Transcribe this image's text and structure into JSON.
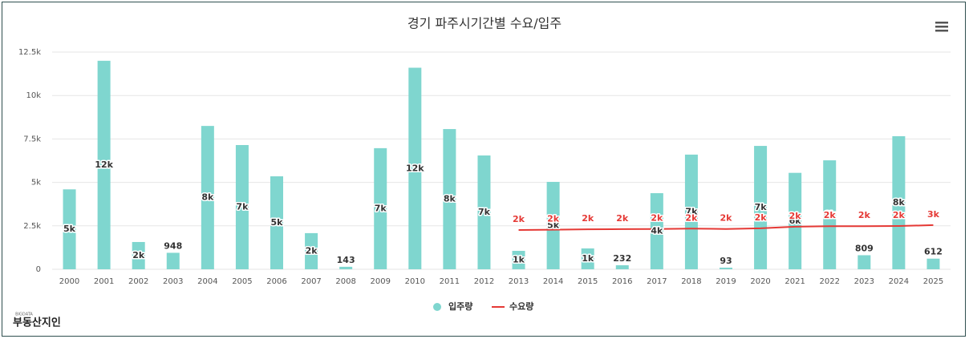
{
  "chart_data": {
    "type": "bar_line",
    "title": "경기 파주시기간별 수요/입주",
    "categories": [
      "2000",
      "2001",
      "2002",
      "2003",
      "2004",
      "2005",
      "2006",
      "2007",
      "2008",
      "2009",
      "2010",
      "2011",
      "2012",
      "2013",
      "2014",
      "2015",
      "2016",
      "2017",
      "2018",
      "2019",
      "2020",
      "2021",
      "2022",
      "2023",
      "2024",
      "2025"
    ],
    "ylim": [
      0,
      12500
    ],
    "yticks": [
      0,
      {
        "value": 2500,
        "label": "2.5k"
      },
      {
        "value": 5000,
        "label": "5k"
      },
      {
        "value": 7500,
        "label": "7.5k"
      },
      {
        "value": 10000,
        "label": "10k"
      },
      {
        "value": 12500,
        "label": "12.5k"
      }
    ],
    "grid": true,
    "legend": "bottom",
    "series": [
      {
        "name": "입주량",
        "type": "bar",
        "color": "#7fd6cf",
        "values": [
          4600,
          12000,
          1570,
          948,
          8250,
          7150,
          5350,
          2080,
          143,
          6970,
          11600,
          8070,
          6550,
          1060,
          5030,
          1200,
          232,
          4380,
          6600,
          93,
          7100,
          5550,
          6270,
          809,
          7660,
          612
        ],
        "value_labels": [
          "5k",
          "12k",
          "2k",
          "948",
          "8k",
          "7k",
          "5k",
          "2k",
          "143",
          "7k",
          "12k",
          "8k",
          "7k",
          "1k",
          "5k",
          "1k",
          "232",
          "4k",
          "7k",
          "93",
          "7k",
          "6k",
          "6k",
          "809",
          "8k",
          "612"
        ]
      },
      {
        "name": "수요량",
        "type": "line",
        "color": "#e53935",
        "values": [
          null,
          null,
          null,
          null,
          null,
          null,
          null,
          null,
          null,
          null,
          null,
          null,
          null,
          2260,
          2280,
          2300,
          2310,
          2320,
          2340,
          2320,
          2360,
          2450,
          2480,
          2480,
          2490,
          2540
        ],
        "value_labels": [
          null,
          null,
          null,
          null,
          null,
          null,
          null,
          null,
          null,
          null,
          null,
          null,
          null,
          "2k",
          "2k",
          "2k",
          "2k",
          "2k",
          "2k",
          "2k",
          "2k",
          "2k",
          "2k",
          "2k",
          "2k",
          "3k"
        ]
      }
    ],
    "logo": {
      "small": "BIGDATA",
      "text": "부동산지인"
    }
  }
}
